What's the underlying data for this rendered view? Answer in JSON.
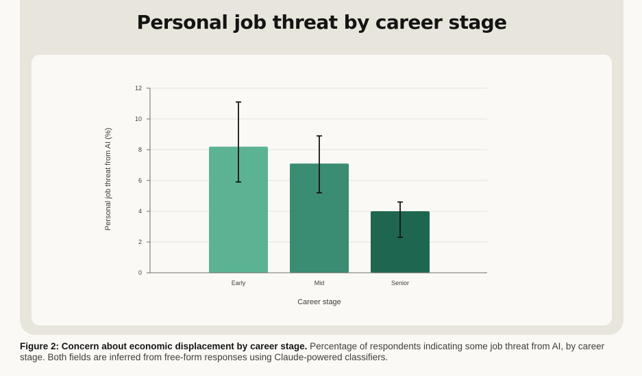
{
  "figure": {
    "title": "Personal job threat by career stage",
    "caption_bold": "Figure 2: Concern about economic displacement by career stage.",
    "caption_text": " Percentage of respondents indicating some job threat from AI, by career stage. Both fields are inferred from free-form responses using Claude-powered classifiers."
  },
  "chart_data": {
    "type": "bar",
    "title": "Personal job threat by career stage",
    "xlabel": "Career stage",
    "ylabel": "Personal job threat from AI (%)",
    "categories": [
      "Early",
      "Mid",
      "Senior"
    ],
    "values": [
      8.2,
      7.1,
      4.0
    ],
    "error_low": [
      5.9,
      5.2,
      2.3
    ],
    "error_high": [
      11.1,
      8.9,
      4.6
    ],
    "colors": [
      "#5bb394",
      "#3a8c73",
      "#1f6650"
    ],
    "ylim": [
      0,
      12
    ],
    "yticks": [
      0,
      2,
      4,
      6,
      8,
      10,
      12
    ],
    "grid": true,
    "gridline_color": "#e3e1d9",
    "axis_color": "#6b6a66"
  }
}
